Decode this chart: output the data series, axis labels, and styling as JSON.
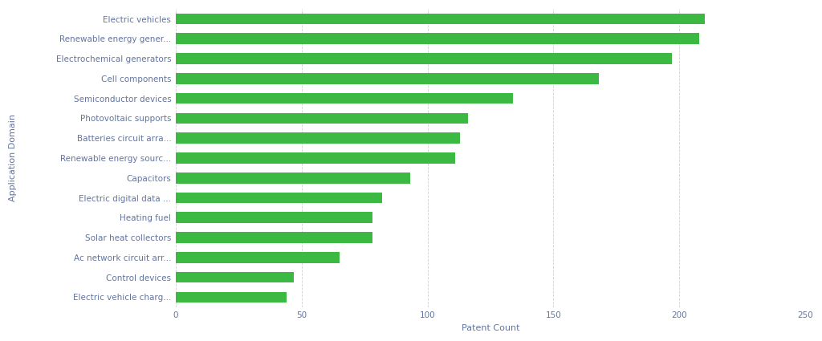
{
  "categories": [
    "Electric vehicle charg...",
    "Control devices",
    "Ac network circuit arr...",
    "Solar heat collectors",
    "Heating fuel",
    "Electric digital data ...",
    "Capacitors",
    "Renewable energy sourc...",
    "Batteries circuit arra...",
    "Photovoltaic supports",
    "Semiconductor devices",
    "Cell components",
    "Electrochemical generators",
    "Renewable energy gener...",
    "Electric vehicles"
  ],
  "values": [
    44,
    47,
    65,
    78,
    78,
    82,
    93,
    111,
    113,
    116,
    134,
    168,
    197,
    208,
    210
  ],
  "bar_color": "#3cb943",
  "xlabel": "Patent Count",
  "ylabel": "Application Domain",
  "xlim": [
    0,
    250
  ],
  "xticks": [
    0,
    50,
    100,
    150,
    200,
    250
  ],
  "background_color": "#ffffff",
  "grid_color": "#d0d0d0",
  "label_color": "#6274a0",
  "bar_height": 0.55,
  "figsize": [
    10.24,
    4.25
  ],
  "dpi": 100,
  "ylabel_fontsize": 8,
  "xlabel_fontsize": 8,
  "tick_fontsize": 7.5
}
